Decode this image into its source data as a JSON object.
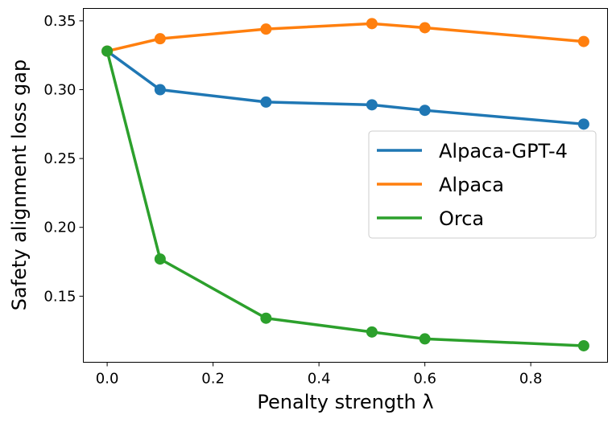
{
  "chart_data": {
    "type": "line",
    "title": "",
    "xlabel": "Penalty strength λ",
    "ylabel": "Safety alignment loss gap",
    "xlim": [
      -0.045,
      0.945
    ],
    "ylim": [
      0.102,
      0.359
    ],
    "xticks": [
      0.0,
      0.2,
      0.4,
      0.6,
      0.8
    ],
    "xtick_labels": [
      "0.0",
      "0.2",
      "0.4",
      "0.6",
      "0.8"
    ],
    "yticks": [
      0.15,
      0.2,
      0.25,
      0.3,
      0.35
    ],
    "ytick_labels": [
      "0.15",
      "0.20",
      "0.25",
      "0.30",
      "0.35"
    ],
    "grid": false,
    "legend_placement": "center-right",
    "x": [
      0.0,
      0.1,
      0.3,
      0.5,
      0.6,
      0.9
    ],
    "series": [
      {
        "name": "Alpaca-GPT-4",
        "color": "#1f77b4",
        "values": [
          0.328,
          0.3,
          0.291,
          0.289,
          0.285,
          0.275
        ]
      },
      {
        "name": "Alpaca",
        "color": "#ff7f0e",
        "values": [
          0.328,
          0.337,
          0.344,
          0.348,
          0.345,
          0.335
        ]
      },
      {
        "name": "Orca",
        "color": "#2ca02c",
        "values": [
          0.328,
          0.177,
          0.134,
          0.124,
          0.119,
          0.114
        ]
      }
    ]
  }
}
